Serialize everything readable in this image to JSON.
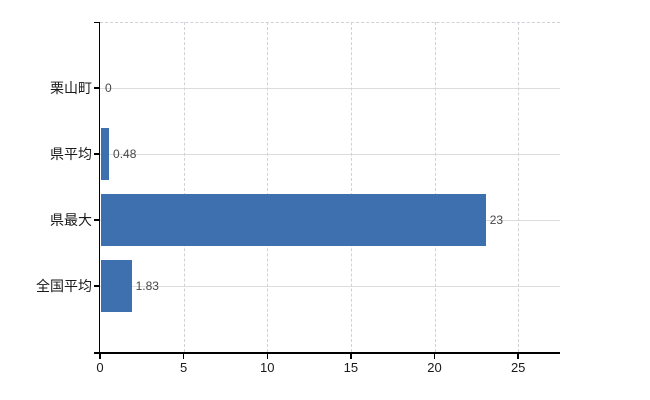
{
  "chart": {
    "bar_color": "#3e6fae",
    "axis_color": "#000000",
    "h_grid_color": "#d9ded8",
    "v_grid_color": "#d5cfd8",
    "value_label_color": "#474747",
    "tick_label_color": "#1a1a1a"
  },
  "chart_data": {
    "type": "bar",
    "orientation": "horizontal",
    "title": "",
    "xlabel": "",
    "ylabel": "",
    "categories": [
      "栗山町",
      "県平均",
      "県最大",
      "全国平均"
    ],
    "values": [
      0,
      0.48,
      23,
      1.83
    ],
    "value_labels": [
      "0",
      "0.48",
      "23",
      "1.83"
    ],
    "x_ticks": [
      0,
      5,
      10,
      15,
      20,
      25
    ],
    "x_tick_labels": [
      "0",
      "5",
      "10",
      "15",
      "20",
      "25"
    ],
    "xlim": [
      0,
      27.5
    ],
    "grid": true,
    "legend": "none"
  }
}
